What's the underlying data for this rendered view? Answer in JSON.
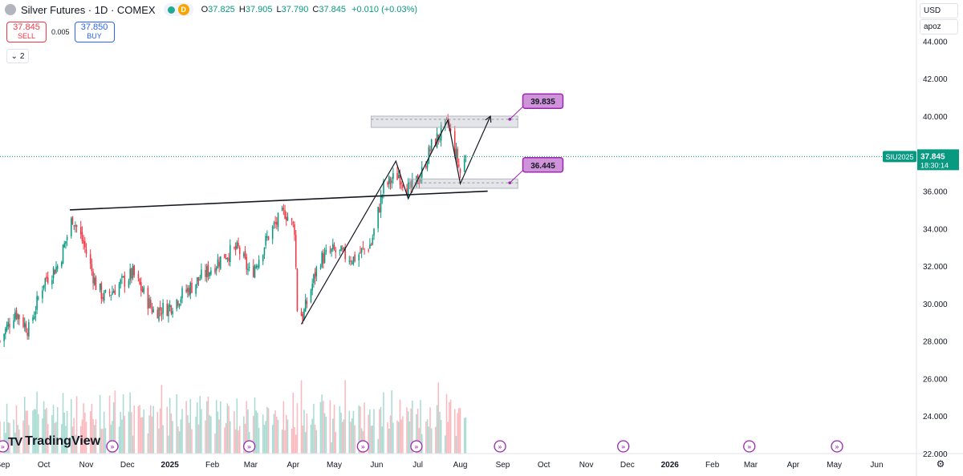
{
  "header": {
    "title": "Silver Futures · 1D · COMEX",
    "status_letter": "D",
    "ohlc": {
      "o_label": "O",
      "o": "37.825",
      "h_label": "H",
      "h": "37.905",
      "l_label": "L",
      "l": "37.790",
      "c_label": "C",
      "c": "37.845",
      "change": "+0.010 (+0.03%)"
    }
  },
  "trade": {
    "sell_price": "37.845",
    "sell_label": "SELL",
    "spread": "0.005",
    "buy_price": "37.850",
    "buy_label": "BUY"
  },
  "indicator_count": "2",
  "right_panel": {
    "currency": "USD",
    "unit": "apoz"
  },
  "brand": {
    "name": "TradingView",
    "mark": "TV"
  },
  "colors": {
    "up": "#089981",
    "down": "#f23645",
    "accent": "#9c27b0",
    "label_fill": "#ce93d8",
    "price_line": "#089981"
  },
  "chart_data": {
    "type": "candlestick",
    "title": "Silver Futures · 1D · COMEX",
    "ylim": [
      22,
      45
    ],
    "yticks": [
      22,
      24,
      26,
      28,
      30,
      32,
      34,
      36,
      38,
      40,
      42,
      44
    ],
    "ytick_labels": [
      "22.000",
      "24.000",
      "26.000",
      "28.000",
      "30.000",
      "32.000",
      "34.000",
      "36.000",
      "38.000",
      "40.000",
      "42.000",
      "44.000"
    ],
    "x_start": "2024-08-30",
    "x_end": "2026-06-30",
    "xticks": [
      {
        "label": "Sep",
        "date": "2024-09-01",
        "bold": false
      },
      {
        "label": "Oct",
        "date": "2024-10-01",
        "bold": false
      },
      {
        "label": "Nov",
        "date": "2024-11-01",
        "bold": false
      },
      {
        "label": "Dec",
        "date": "2024-12-01",
        "bold": false
      },
      {
        "label": "2025",
        "date": "2025-01-01",
        "bold": true
      },
      {
        "label": "Feb",
        "date": "2025-02-01",
        "bold": false
      },
      {
        "label": "Mar",
        "date": "2025-03-01",
        "bold": false
      },
      {
        "label": "Apr",
        "date": "2025-04-01",
        "bold": false
      },
      {
        "label": "May",
        "date": "2025-05-01",
        "bold": false
      },
      {
        "label": "Jun",
        "date": "2025-06-01",
        "bold": false
      },
      {
        "label": "Jul",
        "date": "2025-07-01",
        "bold": false
      },
      {
        "label": "Aug",
        "date": "2025-08-01",
        "bold": false
      },
      {
        "label": "Sep",
        "date": "2025-09-01",
        "bold": false
      },
      {
        "label": "Oct",
        "date": "2025-10-01",
        "bold": false
      },
      {
        "label": "Nov",
        "date": "2025-11-01",
        "bold": false
      },
      {
        "label": "Dec",
        "date": "2025-12-01",
        "bold": false
      },
      {
        "label": "2026",
        "date": "2026-01-01",
        "bold": true
      },
      {
        "label": "Feb",
        "date": "2026-02-01",
        "bold": false
      },
      {
        "label": "Mar",
        "date": "2026-03-01",
        "bold": false
      },
      {
        "label": "Apr",
        "date": "2026-04-01",
        "bold": false
      },
      {
        "label": "May",
        "date": "2026-05-01",
        "bold": false
      },
      {
        "label": "Jun",
        "date": "2026-06-01",
        "bold": false
      }
    ],
    "close_path": [
      {
        "date": "2024-08-30",
        "close": 28.0
      },
      {
        "date": "2024-09-10",
        "close": 29.6
      },
      {
        "date": "2024-09-20",
        "close": 28.6
      },
      {
        "date": "2024-10-01",
        "close": 31.2
      },
      {
        "date": "2024-10-12",
        "close": 32.1
      },
      {
        "date": "2024-10-22",
        "close": 34.6
      },
      {
        "date": "2024-10-30",
        "close": 33.2
      },
      {
        "date": "2024-11-08",
        "close": 31.0
      },
      {
        "date": "2024-11-14",
        "close": 30.3
      },
      {
        "date": "2024-11-25",
        "close": 31.0
      },
      {
        "date": "2024-12-05",
        "close": 31.6
      },
      {
        "date": "2024-12-20",
        "close": 29.6
      },
      {
        "date": "2024-12-31",
        "close": 29.8
      },
      {
        "date": "2025-01-15",
        "close": 30.8
      },
      {
        "date": "2025-01-30",
        "close": 31.8
      },
      {
        "date": "2025-02-10",
        "close": 32.6
      },
      {
        "date": "2025-02-20",
        "close": 32.9
      },
      {
        "date": "2025-03-01",
        "close": 31.5
      },
      {
        "date": "2025-03-15",
        "close": 33.8
      },
      {
        "date": "2025-03-26",
        "close": 34.9
      },
      {
        "date": "2025-04-02",
        "close": 34.0
      },
      {
        "date": "2025-04-04",
        "close": 29.8
      },
      {
        "date": "2025-04-08",
        "close": 29.3
      },
      {
        "date": "2025-04-20",
        "close": 32.3
      },
      {
        "date": "2025-04-30",
        "close": 32.8
      },
      {
        "date": "2025-05-15",
        "close": 32.4
      },
      {
        "date": "2025-05-28",
        "close": 33.2
      },
      {
        "date": "2025-06-06",
        "close": 36.2
      },
      {
        "date": "2025-06-17",
        "close": 36.9
      },
      {
        "date": "2025-06-25",
        "close": 36.0
      },
      {
        "date": "2025-07-03",
        "close": 36.8
      },
      {
        "date": "2025-07-11",
        "close": 38.4
      },
      {
        "date": "2025-07-23",
        "close": 39.6
      },
      {
        "date": "2025-07-30",
        "close": 37.6
      },
      {
        "date": "2025-08-01",
        "close": 37.0
      },
      {
        "date": "2025-08-05",
        "close": 37.845
      }
    ],
    "volume_range": [
      0,
      10
    ],
    "volume_sample": [
      6,
      5,
      4,
      7,
      3,
      5,
      6,
      4,
      8,
      5,
      4,
      6,
      9,
      5,
      6,
      4,
      7,
      5,
      6,
      8,
      5,
      4,
      6,
      7
    ],
    "event_markers": [
      "2024-09-01",
      "2024-11-20",
      "2025-02-28",
      "2025-05-22",
      "2025-06-30",
      "2025-08-30",
      "2025-11-28",
      "2026-02-28",
      "2026-05-03"
    ],
    "drawings": {
      "trendline": {
        "from": {
          "date": "2024-10-20",
          "price": 35.0
        },
        "to": {
          "date": "2025-08-21",
          "price": 36.0
        }
      },
      "wedge_path": [
        {
          "date": "2025-04-07",
          "price": 28.9
        },
        {
          "date": "2025-06-15",
          "price": 37.6
        },
        {
          "date": "2025-06-24",
          "price": 35.6
        },
        {
          "date": "2025-07-23",
          "price": 39.8
        },
        {
          "date": "2025-08-01",
          "price": 36.4
        },
        {
          "date": "2025-08-23",
          "price": 40.0
        }
      ],
      "upper_zone": {
        "from": "2025-05-28",
        "to": "2025-09-12",
        "top": 40.0,
        "bottom": 39.4,
        "level": 39.835
      },
      "lower_zone": {
        "from": "2025-06-25",
        "to": "2025-09-12",
        "top": 36.65,
        "bottom": 36.15,
        "level": 36.445
      }
    },
    "callouts": [
      {
        "text": "39.835",
        "date": "2025-09-18",
        "price": 40.8
      },
      {
        "text": "36.445",
        "date": "2025-09-18",
        "price": 37.4
      }
    ],
    "last_price": {
      "value": 37.845,
      "label": "37.845",
      "countdown": "18:30:14",
      "ticker": "SIU2025"
    }
  }
}
